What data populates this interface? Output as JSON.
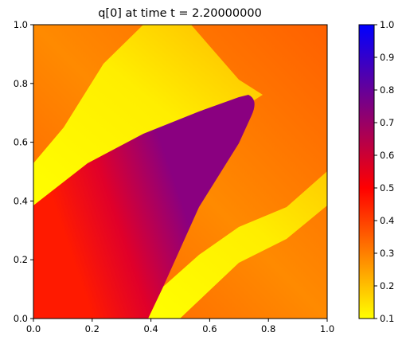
{
  "chart_data": {
    "type": "heatmap",
    "title": "q[0] at time t =     2.20000000",
    "xlabel": "",
    "ylabel": "",
    "xlim": [
      0,
      1
    ],
    "ylim": [
      0,
      1
    ],
    "x_ticks": [
      "0.0",
      "0.2",
      "0.4",
      "0.6",
      "0.8",
      "1.0"
    ],
    "y_ticks": [
      "0.0",
      "0.2",
      "0.4",
      "0.6",
      "0.8",
      "1.0"
    ],
    "grid": false,
    "colorbar": {
      "range": [
        0.1,
        1.0
      ],
      "ticks": [
        "0.1",
        "0.2",
        "0.3",
        "0.4",
        "0.5",
        "0.6",
        "0.7",
        "0.8",
        "0.9",
        "1.0"
      ],
      "colors": [
        {
          "value": 0.1,
          "color": "#ffff00"
        },
        {
          "value": 0.5,
          "color": "#ff0000"
        },
        {
          "value": 1.0,
          "color": "#0000ff"
        }
      ]
    },
    "regions": [
      {
        "name": "background",
        "value_low": 0.38,
        "value_high": 0.45
      },
      {
        "name": "yellow-band-upper",
        "value_low": 0.1,
        "value_high": 0.15
      },
      {
        "name": "yellow-band-lower",
        "value_low": 0.1,
        "value_high": 0.15
      },
      {
        "name": "red-triangle",
        "value_low": 0.5,
        "value_high": 0.78
      }
    ]
  }
}
